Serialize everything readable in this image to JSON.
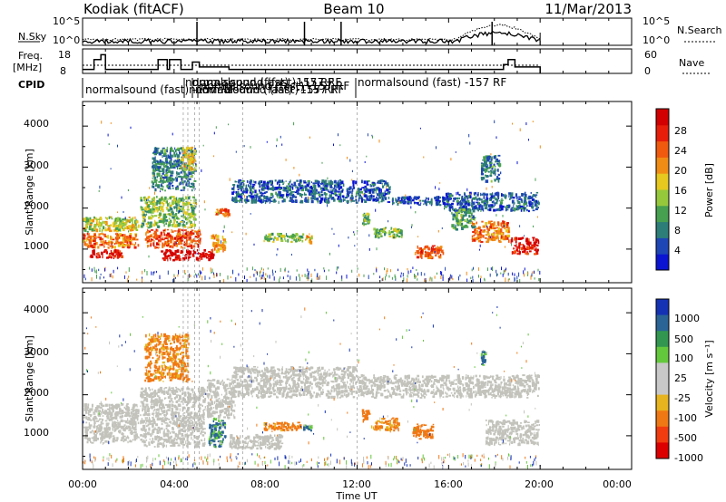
{
  "header": {
    "station": "Kodiak (fitACF)",
    "beam": "Beam 10",
    "date": "11/Mar/2013"
  },
  "noise_panel": {
    "left_label": "N.Sky",
    "right_label": "N.Search",
    "left_ticks": [
      "10^5",
      "10^0"
    ],
    "right_ticks": [
      "10^5",
      "10^0"
    ]
  },
  "freq_panel": {
    "left_label_1": "Freq.",
    "left_label_2": "[MHz]",
    "right_label": "Nave",
    "left_ticks": [
      "18",
      "8"
    ],
    "right_ticks": [
      "60",
      "0"
    ]
  },
  "cpid": {
    "label": "CPID",
    "entries": [
      {
        "text": "normalsound (fast) -157 RF",
        "t": 0.2
      },
      {
        "text": "normalsound (fast) -157 RF",
        "t": 4.5
      },
      {
        "text": "normalsound (fast) -157 RF",
        "t": 4.7
      },
      {
        "text": "normalsound (fast) -157 RF",
        "t": 4.9
      },
      {
        "text": "normalsound (fast) -157 RF",
        "t": 5.1
      },
      {
        "text": "normalsound (fast) -157 RF",
        "t": 5.3
      },
      {
        "text": "normalsound (fast) -157 RF",
        "t": 12.1
      }
    ]
  },
  "power_panel": {
    "ylabel": "Slant Range [km]",
    "yticks": [
      "1000",
      "2000",
      "3000",
      "4000"
    ],
    "colorbar_label": "Power [dB]",
    "colorbar_ticks": [
      "4",
      "8",
      "12",
      "16",
      "20",
      "24",
      "28"
    ]
  },
  "velocity_panel": {
    "ylabel": "Slant Range [km]",
    "yticks": [
      "1000",
      "2000",
      "3000",
      "4000"
    ],
    "colorbar_label": "Velocity [m s⁻¹]",
    "colorbar_ticks": [
      "1000",
      "500",
      "100",
      "25",
      "-25",
      "-100",
      "-500",
      "-1000"
    ]
  },
  "x_axis": {
    "label": "Time UT",
    "ticks": [
      "00:00",
      "04:00",
      "08:00",
      "12:00",
      "16:00",
      "20:00",
      "00:00"
    ]
  },
  "colors": {
    "power_scale": [
      "#0a14d2",
      "#1e46b4",
      "#2d7d78",
      "#46a050",
      "#96c83c",
      "#e6c81e",
      "#f08c14",
      "#f05a0f",
      "#e61e0a",
      "#d20000"
    ],
    "velocity_scale": [
      "#1432b4",
      "#2a6496",
      "#329650",
      "#64c83c",
      "#c8c8c8",
      "#c8c8c8",
      "#e6b41e",
      "#f07814",
      "#f03c0f",
      "#dc0000"
    ],
    "ground_scatter": "#c3c3bc"
  },
  "chart_data": {
    "type": "heatmap",
    "xlabel": "Time UT",
    "ylabel": "Slant Range [km]",
    "xlim_hours": [
      0,
      24
    ],
    "ylim_km": [
      180,
      4600
    ],
    "x_ticks_hours": [
      0,
      4,
      8,
      12,
      16,
      20,
      24
    ],
    "y_ticks_km": [
      1000,
      2000,
      3000,
      4000
    ],
    "data_end_hour": 20,
    "mode_change_hours": [
      4.4,
      4.6,
      4.9,
      5.1,
      7.0,
      12.0
    ],
    "frequency_MHz": {
      "segments": [
        {
          "t0": 0.0,
          "t1": 0.5,
          "value": 10
        },
        {
          "t0": 0.5,
          "t1": 0.8,
          "value": 14
        },
        {
          "t0": 0.8,
          "t1": 1.0,
          "value": 16
        },
        {
          "t0": 1.0,
          "t1": 3.3,
          "value": 10
        },
        {
          "t0": 3.3,
          "t1": 3.7,
          "value": 14
        },
        {
          "t0": 3.7,
          "t1": 3.8,
          "value": 10
        },
        {
          "t0": 3.8,
          "t1": 4.3,
          "value": 14
        },
        {
          "t0": 4.3,
          "t1": 4.8,
          "value": 10
        },
        {
          "t0": 4.8,
          "t1": 5.1,
          "value": 13
        },
        {
          "t0": 5.1,
          "t1": 6.4,
          "value": 11
        },
        {
          "t0": 6.4,
          "t1": 18.4,
          "value": 10
        },
        {
          "t0": 18.4,
          "t1": 18.6,
          "value": 12
        },
        {
          "t0": 18.6,
          "t1": 18.9,
          "value": 14
        },
        {
          "t0": 18.9,
          "t1": 20.0,
          "value": 11
        }
      ],
      "nave_approx": 20
    },
    "noise": {
      "sky_approx_log10": 0.6,
      "search_approx_log10": 1.0,
      "search_bump": {
        "t0": 16.3,
        "t1": 20.0,
        "log10": 3.6
      },
      "spikes_hours": [
        5.0,
        9.7,
        11.3,
        17.9
      ]
    },
    "power_regions": [
      {
        "t0": 0.0,
        "t1": 2.5,
        "r0": 1400,
        "r1": 1800,
        "dB": 16
      },
      {
        "t0": 0.0,
        "t1": 2.5,
        "r0": 1000,
        "r1": 1400,
        "dB": 22
      },
      {
        "t0": 0.3,
        "t1": 1.8,
        "r0": 750,
        "r1": 1000,
        "dB": 28
      },
      {
        "t0": 2.5,
        "t1": 5.0,
        "r0": 1500,
        "r1": 2300,
        "dB": 14
      },
      {
        "t0": 2.7,
        "t1": 5.2,
        "r0": 1000,
        "r1": 1500,
        "dB": 24
      },
      {
        "t0": 3.4,
        "t1": 5.8,
        "r0": 700,
        "r1": 1000,
        "dB": 29
      },
      {
        "t0": 5.6,
        "t1": 6.3,
        "r0": 900,
        "r1": 1400,
        "dB": 20
      },
      {
        "t0": 5.8,
        "t1": 6.5,
        "r0": 1750,
        "r1": 2000,
        "dB": 22
      },
      {
        "t0": 3.0,
        "t1": 5.0,
        "r0": 2400,
        "r1": 3500,
        "dB": 10
      },
      {
        "t0": 4.3,
        "t1": 5.0,
        "r0": 2900,
        "r1": 3500,
        "dB": 18
      },
      {
        "t0": 6.5,
        "t1": 13.5,
        "r0": 2100,
        "r1": 2700,
        "dB": 8
      },
      {
        "t0": 13.5,
        "t1": 15.7,
        "r0": 2050,
        "r1": 2300,
        "dB": 7
      },
      {
        "t0": 15.7,
        "t1": 20.0,
        "r0": 1900,
        "r1": 2400,
        "dB": 8
      },
      {
        "t0": 7.9,
        "t1": 9.7,
        "r0": 1150,
        "r1": 1400,
        "dB": 14
      },
      {
        "t0": 9.7,
        "t1": 10.1,
        "r0": 1100,
        "r1": 1350,
        "dB": 20
      },
      {
        "t0": 12.2,
        "t1": 12.6,
        "r0": 1550,
        "r1": 1900,
        "dB": 14
      },
      {
        "t0": 12.7,
        "t1": 14.0,
        "r0": 1250,
        "r1": 1550,
        "dB": 14
      },
      {
        "t0": 14.5,
        "t1": 15.8,
        "r0": 750,
        "r1": 1100,
        "dB": 24
      },
      {
        "t0": 16.1,
        "t1": 17.2,
        "r0": 1450,
        "r1": 2000,
        "dB": 12
      },
      {
        "t0": 17.0,
        "t1": 18.7,
        "r0": 1150,
        "r1": 1700,
        "dB": 22
      },
      {
        "t0": 18.7,
        "t1": 20.0,
        "r0": 850,
        "r1": 1300,
        "dB": 27
      },
      {
        "t0": 17.4,
        "t1": 18.3,
        "r0": 2600,
        "r1": 3300,
        "dB": 10
      }
    ],
    "velocity_regions": [
      {
        "t0": 0.0,
        "t1": 2.5,
        "r0": 800,
        "r1": 1800,
        "mps": 0,
        "ground_scatter": true
      },
      {
        "t0": 2.5,
        "t1": 5.4,
        "r0": 700,
        "r1": 2200,
        "mps": 0,
        "ground_scatter": true
      },
      {
        "t0": 5.4,
        "t1": 6.7,
        "r0": 1400,
        "r1": 2400,
        "mps": 0,
        "ground_scatter": true
      },
      {
        "t0": 6.5,
        "t1": 12.0,
        "r0": 1900,
        "r1": 2700,
        "mps": 0,
        "ground_scatter": true
      },
      {
        "t0": 12.0,
        "t1": 20.0,
        "r0": 1900,
        "r1": 2500,
        "mps": 0,
        "ground_scatter": true
      },
      {
        "t0": 6.4,
        "t1": 8.8,
        "r0": 650,
        "r1": 1050,
        "mps": 0,
        "ground_scatter": true
      },
      {
        "t0": 17.6,
        "t1": 20.0,
        "r0": 750,
        "r1": 1400,
        "mps": 0,
        "ground_scatter": true
      },
      {
        "t0": 2.7,
        "t1": 4.7,
        "r0": 2300,
        "r1": 3500,
        "mps": -150
      },
      {
        "t0": 5.5,
        "t1": 6.3,
        "r0": 700,
        "r1": 1450,
        "mps": 120
      },
      {
        "t0": 7.9,
        "t1": 9.6,
        "r0": 1100,
        "r1": 1350,
        "mps": -150
      },
      {
        "t0": 9.6,
        "t1": 10.1,
        "r0": 1100,
        "r1": 1300,
        "mps": 100
      },
      {
        "t0": 12.2,
        "t1": 12.6,
        "r0": 1300,
        "r1": 1650,
        "mps": -300
      },
      {
        "t0": 12.6,
        "t1": 13.9,
        "r0": 1100,
        "r1": 1450,
        "mps": -120
      },
      {
        "t0": 14.4,
        "t1": 15.4,
        "r0": 900,
        "r1": 1300,
        "mps": -250
      },
      {
        "t0": 17.4,
        "t1": 17.7,
        "r0": 2700,
        "r1": 3100,
        "mps": 100
      }
    ]
  }
}
